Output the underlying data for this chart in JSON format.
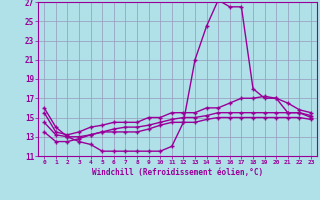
{
  "title": "Windchill (Refroidissement éolien,°C)",
  "bg_color": "#b0e0e8",
  "grid_color": "#9999bb",
  "line_color": "#990099",
  "x_hours": [
    0,
    1,
    2,
    3,
    4,
    5,
    6,
    7,
    8,
    9,
    10,
    11,
    12,
    13,
    14,
    15,
    16,
    17,
    18,
    19,
    20,
    21,
    22,
    23
  ],
  "curve1": [
    16,
    14,
    13,
    12.5,
    12.2,
    11.5,
    11.5,
    11.5,
    11.5,
    11.5,
    11.5,
    12,
    14.5,
    21,
    24.5,
    27.2,
    26.5,
    26.5,
    18,
    17,
    17,
    15.5,
    15.5,
    15
  ],
  "curve2": [
    15.5,
    13.5,
    13.2,
    13.5,
    14,
    14.2,
    14.5,
    14.5,
    14.5,
    15,
    15,
    15.5,
    15.5,
    15.5,
    16,
    16,
    16.5,
    17,
    17,
    17.2,
    17,
    16.5,
    15.8,
    15.5
  ],
  "curve3": [
    14.5,
    13.2,
    13,
    13,
    13.2,
    13.5,
    13.8,
    14,
    14,
    14.2,
    14.5,
    14.8,
    15,
    15,
    15.2,
    15.5,
    15.5,
    15.5,
    15.5,
    15.5,
    15.5,
    15.5,
    15.5,
    15.2
  ],
  "curve4": [
    13.5,
    12.5,
    12.5,
    12.8,
    13.2,
    13.5,
    13.5,
    13.5,
    13.5,
    13.8,
    14.2,
    14.5,
    14.5,
    14.5,
    14.8,
    15,
    15,
    15,
    15,
    15,
    15,
    15,
    15,
    14.8
  ],
  "ylim": [
    11,
    27
  ],
  "yticks": [
    11,
    13,
    15,
    17,
    19,
    21,
    23,
    25,
    27
  ],
  "xlim": [
    -0.5,
    23.5
  ],
  "xticks": [
    0,
    1,
    2,
    3,
    4,
    5,
    6,
    7,
    8,
    9,
    10,
    11,
    12,
    13,
    14,
    15,
    16,
    17,
    18,
    19,
    20,
    21,
    22,
    23
  ],
  "markersize": 2.5,
  "linewidth": 1.0
}
